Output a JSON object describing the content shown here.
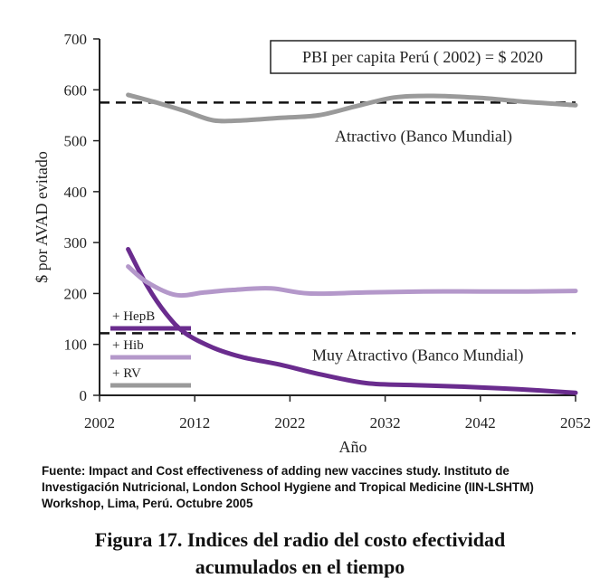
{
  "chart_data": {
    "type": "line",
    "ylabel": "$ por AVAD  evitado",
    "xlabel": "Año",
    "ylim": [
      0,
      700
    ],
    "xlim": [
      2002,
      2052
    ],
    "yticks": [
      0,
      100,
      200,
      300,
      400,
      500,
      600,
      700
    ],
    "xticks": [
      2002,
      2012,
      2022,
      2032,
      2042,
      2052
    ],
    "grid": false,
    "legend_position": "bottom-left",
    "series": [
      {
        "name": "+ HepB",
        "color": "#6a2c8e",
        "x": [
          2005,
          2007,
          2009,
          2011,
          2014,
          2017,
          2021,
          2025,
          2030,
          2035,
          2040,
          2046,
          2052
        ],
        "y": [
          287,
          215,
          160,
          122,
          93,
          75,
          60,
          42,
          24,
          20,
          17,
          12,
          5
        ]
      },
      {
        "name": "+ Hib",
        "color": "#b498ca",
        "x": [
          2005,
          2007,
          2010,
          2013,
          2016,
          2020,
          2024,
          2030,
          2036,
          2042,
          2047,
          2052
        ],
        "y": [
          253,
          222,
          197,
          202,
          207,
          210,
          200,
          202,
          204,
          204,
          204,
          205
        ]
      },
      {
        "name": "+ RV",
        "color": "#9a9a9a",
        "x": [
          2005,
          2008,
          2011,
          2014,
          2017,
          2021,
          2025,
          2029,
          2033,
          2037,
          2042,
          2047,
          2052
        ],
        "y": [
          590,
          575,
          558,
          540,
          540,
          545,
          550,
          568,
          585,
          588,
          584,
          576,
          570
        ]
      }
    ],
    "reference_lines": [
      {
        "y": 575,
        "label": "Atractivo (Banco Mundial)"
      },
      {
        "y": 122,
        "label": "Muy Atractivo (Banco Mundial)"
      }
    ],
    "annotation_box": "PBI per capita Perú ( 2002) = $ 2020"
  },
  "source_text": "Fuente: Impact and Cost effectiveness of adding new vaccines study. Instituto de Investigación Nutricional, London School Hygiene and Tropical Medicine (IIN-LSHTM) Workshop, Lima, Perú. Octubre 2005",
  "caption": {
    "line1": "Figura 17.  Indices del radio del costo efectividad",
    "line2": "acumulados en el tiempo"
  }
}
